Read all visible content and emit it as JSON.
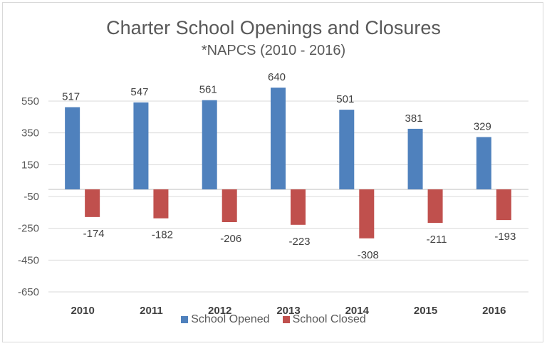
{
  "chart_data": {
    "type": "bar",
    "title": "Charter School Openings and Closures",
    "subtitle": "*NAPCS (2010 - 2016)",
    "categories": [
      "2010",
      "2011",
      "2012",
      "2013",
      "2014",
      "2015",
      "2016"
    ],
    "series": [
      {
        "name": "School Opened",
        "color": "#4f81bd",
        "values": [
          517,
          547,
          561,
          640,
          501,
          381,
          329
        ]
      },
      {
        "name": "School Closed",
        "color": "#c0504d",
        "values": [
          -174,
          -182,
          -206,
          -223,
          -308,
          -211,
          -193
        ]
      }
    ],
    "yticks": [
      550,
      350,
      150,
      -50,
      -250,
      -450,
      -650
    ],
    "ylim": [
      -650,
      650
    ],
    "grid": true,
    "legend_position": "bottom"
  }
}
